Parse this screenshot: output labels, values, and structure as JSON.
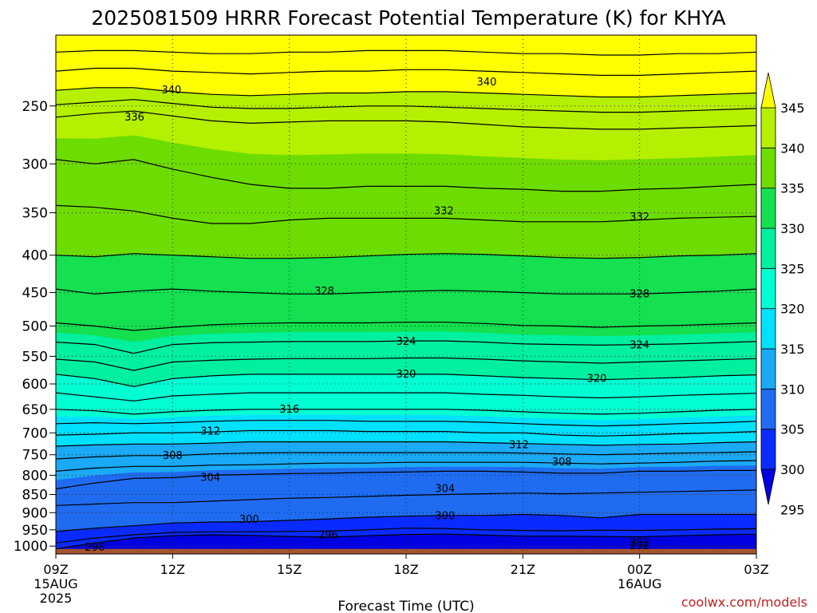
{
  "title": "2025081509 HRRR Forecast Potential Temperature (K) for KHYA",
  "xlabel": "Forecast Time (UTC)",
  "credit": "coolwx.com/models",
  "colors": {
    "ground": "#a5552e",
    "contour_line": "#000000",
    "bands": [
      "#0000e0",
      "#0a2bff",
      "#1f6cf0",
      "#1aaaf6",
      "#00e0ff",
      "#00ffd2",
      "#00f0a0",
      "#14e050",
      "#6ddc00",
      "#b4f000",
      "#ffff00"
    ]
  },
  "chart_data": {
    "type": "heatmap",
    "title": "2025081509 HRRR Forecast Potential Temperature (K) for KHYA",
    "xlabel": "Forecast Time (UTC)",
    "ylabel": "",
    "units": "K",
    "x_ticks": [
      {
        "hour": 0,
        "label": "09Z",
        "sub": [
          "15AUG",
          "2025"
        ]
      },
      {
        "hour": 3,
        "label": "12Z",
        "sub": []
      },
      {
        "hour": 6,
        "label": "15Z",
        "sub": []
      },
      {
        "hour": 9,
        "label": "18Z",
        "sub": []
      },
      {
        "hour": 12,
        "label": "21Z",
        "sub": []
      },
      {
        "hour": 15,
        "label": "00Z",
        "sub": [
          "16AUG"
        ]
      },
      {
        "hour": 18,
        "label": "03Z",
        "sub": []
      }
    ],
    "xlim": [
      0,
      18
    ],
    "y_ticks": [
      250,
      300,
      350,
      400,
      450,
      500,
      550,
      600,
      650,
      700,
      750,
      800,
      850,
      900,
      950,
      1000
    ],
    "ylim": [
      1025,
      200
    ],
    "y_scale": "log-pressure (hPa)",
    "grid": "dotted",
    "colorbar": {
      "levels": [
        295,
        300,
        305,
        310,
        315,
        320,
        325,
        330,
        335,
        340,
        345
      ],
      "extend": "both",
      "labels": [
        "345",
        "340",
        "335",
        "330",
        "325",
        "320",
        "315",
        "310",
        "305",
        "300",
        "295"
      ]
    },
    "contour_interval": 2,
    "contours": [
      {
        "value": 296,
        "label": "296",
        "p": [
          1009,
          990,
          975,
          968,
          965,
          967,
          970,
          972,
          968,
          964,
          963,
          966,
          969,
          969,
          970,
          971,
          968,
          965,
          963
        ]
      },
      {
        "value": 298,
        "label": "",
        "p": [
          990,
          975,
          965,
          958,
          956,
          956,
          955,
          954,
          950,
          945,
          946,
          950,
          952,
          953,
          951,
          952,
          950,
          948,
          947
        ]
      },
      {
        "value": 300,
        "label": "300",
        "p": [
          955,
          945,
          938,
          930,
          927,
          926,
          922,
          918,
          913,
          910,
          908,
          908,
          905,
          908,
          915,
          905,
          905,
          905,
          905
        ]
      },
      {
        "value": 302,
        "label": "",
        "p": [
          880,
          876,
          872,
          872,
          868,
          864,
          860,
          858,
          855,
          852,
          850,
          848,
          846,
          848,
          846,
          844,
          842,
          840,
          838
        ]
      },
      {
        "value": 304,
        "label": "304",
        "p": [
          835,
          820,
          808,
          806,
          800,
          798,
          796,
          795,
          793,
          792,
          790,
          790,
          792,
          795,
          795,
          790,
          790,
          788,
          788
        ]
      },
      {
        "value": 306,
        "label": "",
        "p": [
          790,
          782,
          778,
          778,
          775,
          774,
          772,
          770,
          770,
          768,
          768,
          768,
          768,
          770,
          772,
          770,
          768,
          765,
          764
        ]
      },
      {
        "value": 308,
        "label": "308",
        "p": [
          760,
          755,
          752,
          752,
          748,
          746,
          745,
          745,
          745,
          745,
          745,
          745,
          746,
          748,
          750,
          748,
          746,
          745,
          743
        ]
      },
      {
        "value": 310,
        "label": "",
        "p": [
          730,
          727,
          725,
          725,
          723,
          720,
          720,
          720,
          720,
          720,
          720,
          722,
          724,
          726,
          728,
          726,
          725,
          722,
          720
        ]
      },
      {
        "value": 312,
        "label": "312",
        "p": [
          705,
          703,
          700,
          700,
          698,
          695,
          695,
          695,
          697,
          697,
          697,
          700,
          700,
          705,
          707,
          705,
          702,
          700,
          697
        ]
      },
      {
        "value": 314,
        "label": "",
        "p": [
          680,
          678,
          680,
          678,
          675,
          673,
          673,
          673,
          675,
          675,
          675,
          677,
          680,
          683,
          685,
          683,
          680,
          678,
          675
        ]
      },
      {
        "value": 316,
        "label": "316",
        "p": [
          650,
          653,
          660,
          655,
          652,
          650,
          650,
          650,
          650,
          650,
          650,
          652,
          655,
          658,
          660,
          658,
          655,
          652,
          650
        ]
      },
      {
        "value": 318,
        "label": "",
        "p": [
          617,
          625,
          633,
          623,
          620,
          617,
          617,
          617,
          617,
          617,
          617,
          620,
          622,
          625,
          627,
          625,
          622,
          620,
          618
        ]
      },
      {
        "value": 320,
        "label": "320",
        "p": [
          582,
          590,
          605,
          590,
          585,
          582,
          582,
          582,
          582,
          582,
          582,
          585,
          588,
          590,
          592,
          590,
          588,
          585,
          583
        ]
      },
      {
        "value": 322,
        "label": "",
        "p": [
          555,
          560,
          575,
          560,
          557,
          555,
          554,
          554,
          554,
          553,
          553,
          555,
          558,
          560,
          562,
          560,
          558,
          556,
          554
        ]
      },
      {
        "value": 324,
        "label": "324",
        "p": [
          526,
          530,
          545,
          530,
          527,
          526,
          525,
          525,
          525,
          524,
          524,
          526,
          529,
          530,
          531,
          530,
          529,
          527,
          525
        ]
      },
      {
        "value": 326,
        "label": "",
        "p": [
          495,
          500,
          507,
          502,
          498,
          496,
          495,
          495,
          495,
          494,
          494,
          496,
          499,
          500,
          502,
          500,
          499,
          497,
          495
        ]
      },
      {
        "value": 328,
        "label": "328",
        "p": [
          445,
          452,
          448,
          445,
          448,
          450,
          452,
          452,
          450,
          448,
          447,
          448,
          450,
          452,
          452,
          452,
          450,
          448,
          445
        ]
      },
      {
        "value": 330,
        "label": "",
        "p": [
          400,
          402,
          398,
          400,
          402,
          404,
          404,
          403,
          401,
          399,
          398,
          399,
          401,
          403,
          404,
          403,
          401,
          400,
          398
        ]
      },
      {
        "value": 332,
        "label": "332",
        "p": [
          342,
          344,
          348,
          356,
          362,
          362,
          358,
          356,
          356,
          356,
          356,
          358,
          360,
          360,
          360,
          358,
          356,
          355,
          354
        ]
      },
      {
        "value": 334,
        "label": "",
        "p": [
          296,
          300,
          296,
          305,
          313,
          320,
          324,
          324,
          322,
          322,
          322,
          324,
          325,
          327,
          327,
          325,
          324,
          322,
          320
        ]
      },
      {
        "value": 336,
        "label": "336",
        "p": [
          259,
          256,
          254,
          258,
          262,
          264,
          263,
          262,
          262,
          262,
          263,
          265,
          267,
          268,
          269,
          269,
          268,
          267,
          266
        ]
      },
      {
        "value": 338,
        "label": "",
        "p": [
          249,
          247,
          245,
          248,
          251,
          252,
          252,
          251,
          250,
          250,
          251,
          252,
          253,
          254,
          255,
          255,
          254,
          253,
          252
        ]
      },
      {
        "value": 340,
        "label": "340",
        "p": [
          238,
          236,
          236,
          239,
          241,
          242,
          241,
          240,
          240,
          239,
          239,
          240,
          241,
          242,
          243,
          243,
          242,
          241,
          240
        ]
      },
      {
        "value": 342,
        "label": "",
        "p": [
          224,
          222,
          222,
          224,
          225,
          226,
          225,
          224,
          224,
          223,
          223,
          224,
          225,
          226,
          227,
          227,
          226,
          225,
          224
        ]
      },
      {
        "value": 344,
        "label": "",
        "p": [
          211,
          210,
          210,
          211,
          212,
          212,
          211,
          211,
          210,
          210,
          210,
          211,
          212,
          212,
          213,
          213,
          212,
          212,
          211
        ]
      }
    ],
    "contour_labels": [
      {
        "text": "340",
        "x": 2.97,
        "p": 238
      },
      {
        "text": "340",
        "x": 11.07,
        "p": 232
      },
      {
        "text": "336",
        "x": 2.02,
        "p": 259
      },
      {
        "text": "332",
        "x": 9.97,
        "p": 348
      },
      {
        "text": "332",
        "x": 15.0,
        "p": 355
      },
      {
        "text": "328",
        "x": 6.9,
        "p": 448
      },
      {
        "text": "328",
        "x": 15.0,
        "p": 452
      },
      {
        "text": "324",
        "x": 9.0,
        "p": 525
      },
      {
        "text": "324",
        "x": 15.0,
        "p": 531
      },
      {
        "text": "320",
        "x": 9.0,
        "p": 582
      },
      {
        "text": "320",
        "x": 13.9,
        "p": 590
      },
      {
        "text": "316",
        "x": 6.0,
        "p": 650
      },
      {
        "text": "312",
        "x": 3.97,
        "p": 697
      },
      {
        "text": "312",
        "x": 11.9,
        "p": 727
      },
      {
        "text": "308",
        "x": 3.0,
        "p": 752
      },
      {
        "text": "308",
        "x": 13.0,
        "p": 768
      },
      {
        "text": "304",
        "x": 3.97,
        "p": 806
      },
      {
        "text": "304",
        "x": 10.0,
        "p": 835
      },
      {
        "text": "300",
        "x": 4.97,
        "p": 920
      },
      {
        "text": "300",
        "x": 10.0,
        "p": 910
      },
      {
        "text": "296",
        "x": 7.0,
        "p": 966
      },
      {
        "text": "296",
        "x": 1.0,
        "p": 1004
      },
      {
        "text": "292",
        "x": 15.0,
        "p": 1000
      },
      {
        "text": "292",
        "x": 15.0,
        "p": 990
      }
    ]
  }
}
